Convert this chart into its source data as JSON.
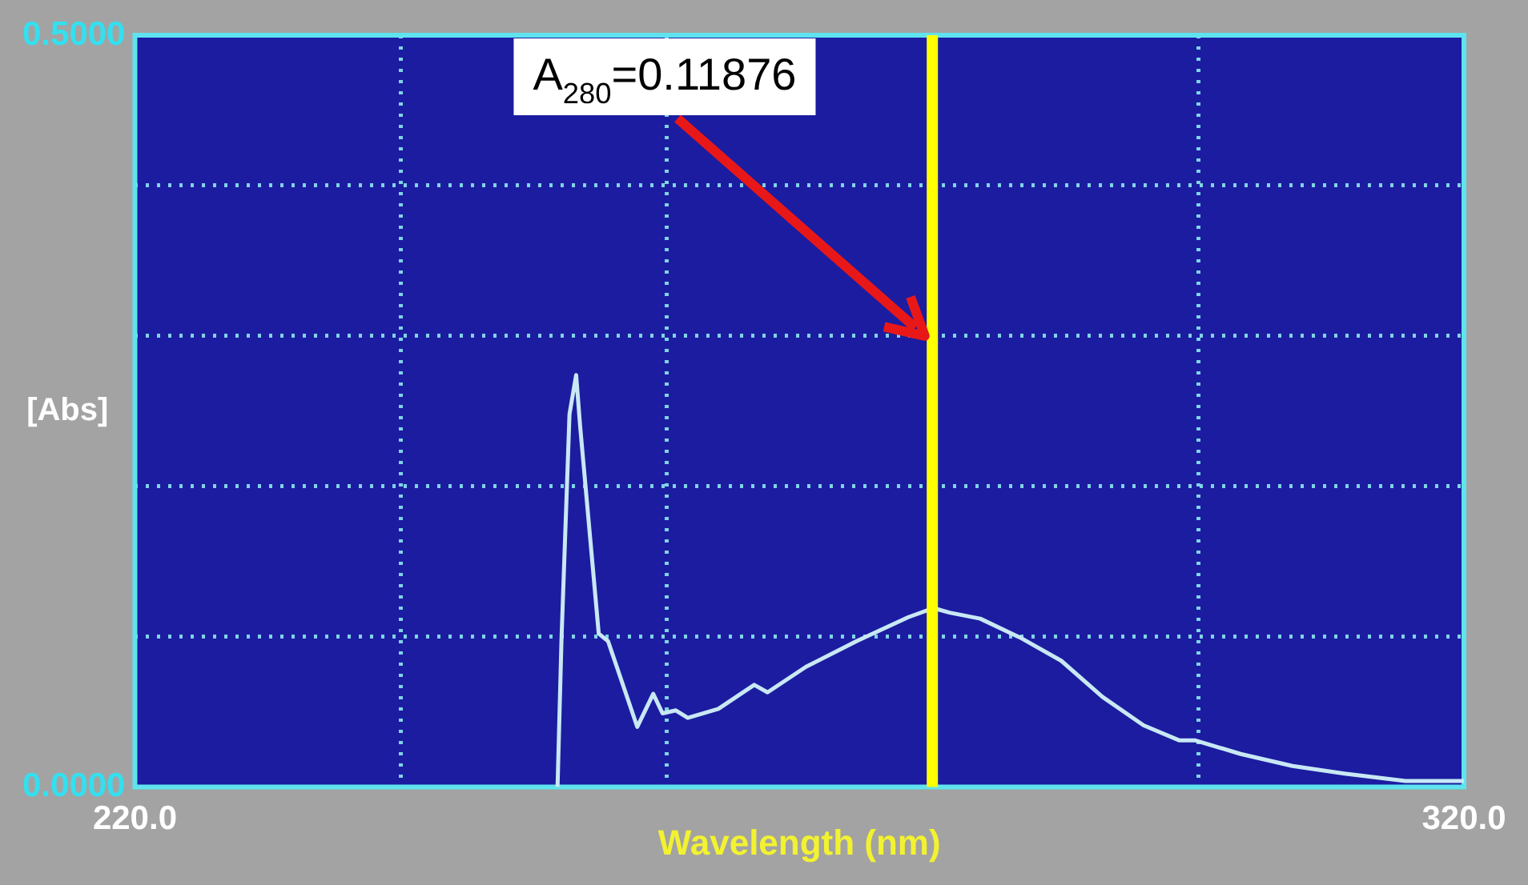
{
  "chart_data": {
    "type": "line",
    "xlabel": "Wavelength (nm)",
    "ylabel": "[Abs]",
    "x": [
      251.8,
      252.1,
      252.7,
      253.2,
      253.5,
      254.9,
      255.6,
      257.8,
      259.0,
      259.7,
      260.7,
      261.6,
      263.9,
      266.6,
      267.6,
      270.5,
      274.3,
      278.2,
      280.1,
      281.3,
      283.6,
      286.7,
      289.7,
      292.8,
      295.9,
      298.6,
      299.8,
      303.2,
      307.1,
      311.0,
      315.6,
      320
    ],
    "series": [
      {
        "color": "#c8e8f4",
        "values": [
          0,
          0.099,
          0.248,
          0.274,
          0.24,
          0.102,
          0.097,
          0.04,
          0.062,
          0.049,
          0.051,
          0.046,
          0.052,
          0.068,
          0.063,
          0.08,
          0.097,
          0.113,
          0.119,
          0.116,
          0.112,
          0.099,
          0.084,
          0.06,
          0.041,
          0.031,
          0.031,
          0.022,
          0.014,
          0.009,
          0.004,
          0.004
        ]
      }
    ],
    "xlim": [
      220,
      320
    ],
    "xticks": [
      {
        "value": 220,
        "label": "220.0"
      },
      {
        "value": 240,
        "label": null
      },
      {
        "value": 260,
        "label": null
      },
      {
        "value": 280,
        "label": null
      },
      {
        "value": 300,
        "label": null
      },
      {
        "value": 320,
        "label": "320.0"
      }
    ],
    "ylim": [
      0,
      0.5
    ],
    "yticks": [
      {
        "value": 0,
        "label": "0.0000"
      },
      {
        "value": 0.1,
        "label": null
      },
      {
        "value": 0.2,
        "label": null
      },
      {
        "value": 0.3,
        "label": null
      },
      {
        "value": 0.4,
        "label": null
      },
      {
        "value": 0.5,
        "label": "0.5000"
      }
    ],
    "grid": true,
    "marker": "none",
    "legend": false,
    "ref_lines": [
      {
        "axis": "x",
        "value": 280,
        "color": "#ffff00"
      }
    ],
    "annotations": [
      "A$_{280}$=0.11876"
    ]
  }
}
